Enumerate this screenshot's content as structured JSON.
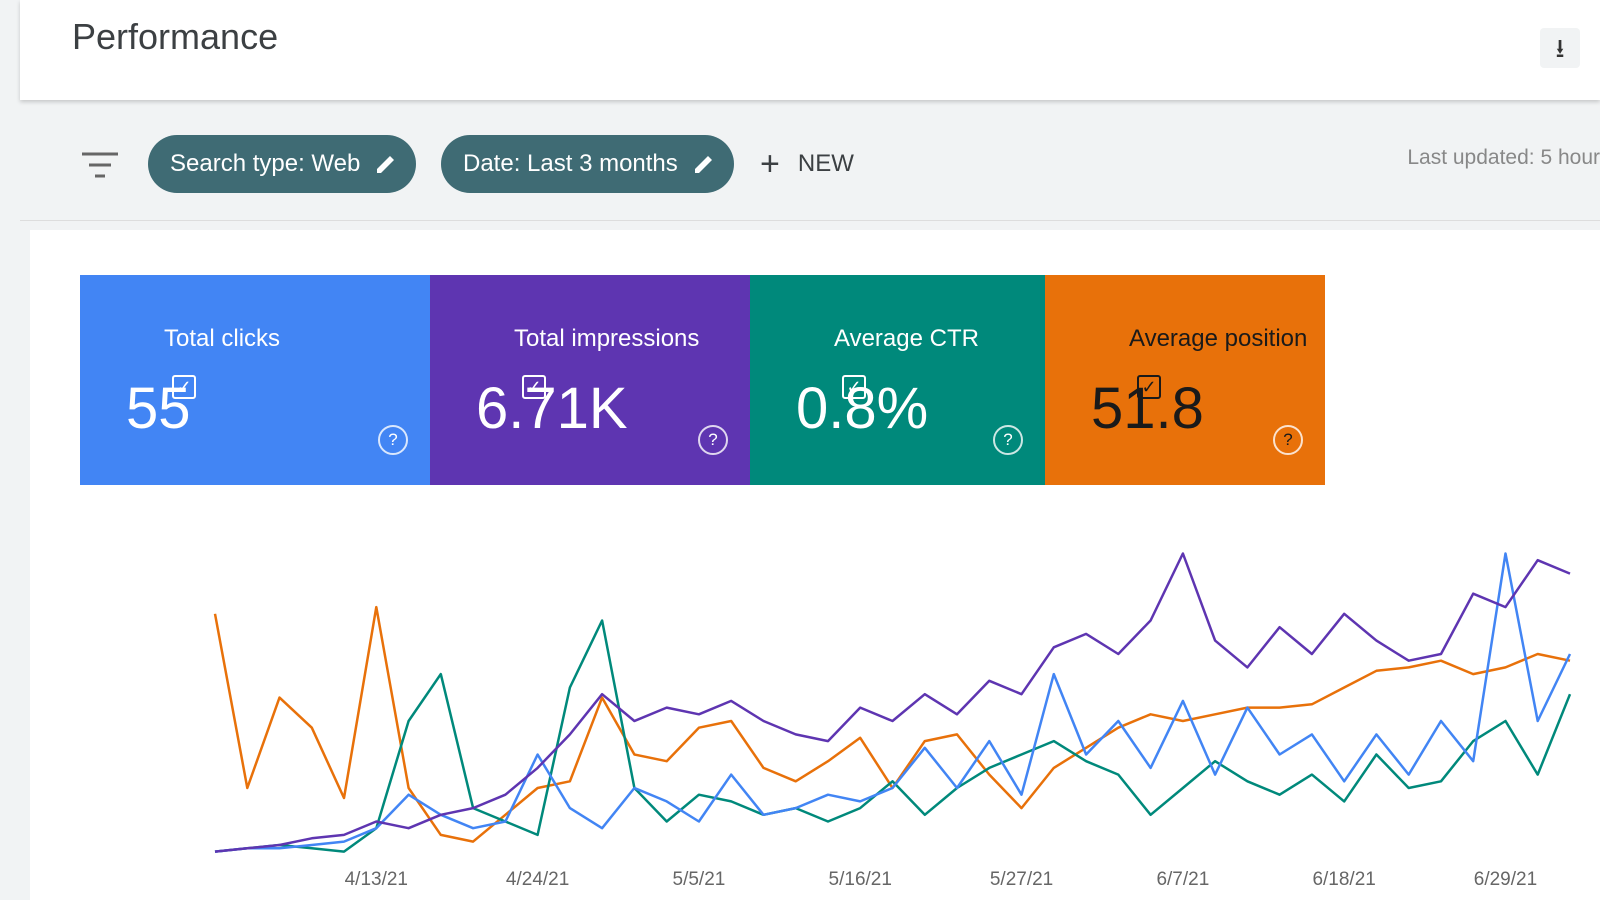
{
  "header": {
    "title": "Performance",
    "last_updated": "Last updated: 5 hour"
  },
  "filters": [
    "Search type: Web",
    "Date: Last 3 months"
  ],
  "new_button": "NEW",
  "chart_data": {
    "type": "line",
    "categories": [
      null,
      null,
      null,
      null,
      null,
      "4/13/21",
      null,
      null,
      null,
      null,
      "4/24/21",
      null,
      null,
      null,
      null,
      "5/5/21",
      null,
      null,
      null,
      null,
      "5/16/21",
      null,
      null,
      null,
      null,
      "5/27/21",
      null,
      null,
      null,
      null,
      "6/7/21",
      null,
      null,
      null,
      null,
      "6/18/21",
      null,
      null,
      null,
      null,
      "6/29/21",
      null,
      null
    ],
    "ylim": [
      0,
      100
    ],
    "series": [
      {
        "name": "Total clicks",
        "summary": "55",
        "color": "#4285f4",
        "values": [
          1,
          2,
          2,
          3,
          4,
          8,
          18,
          12,
          8,
          10,
          30,
          14,
          8,
          20,
          16,
          10,
          24,
          12,
          14,
          18,
          16,
          20,
          32,
          20,
          34,
          18,
          54,
          30,
          40,
          26,
          46,
          24,
          44,
          30,
          36,
          22,
          36,
          24,
          40,
          28,
          90,
          40,
          60
        ]
      },
      {
        "name": "Total impressions",
        "summary": "6.71K",
        "color": "#5e35b1",
        "values": [
          1,
          2,
          3,
          5,
          6,
          10,
          8,
          12,
          14,
          18,
          26,
          36,
          48,
          40,
          44,
          42,
          46,
          40,
          36,
          34,
          44,
          40,
          48,
          42,
          52,
          48,
          62,
          66,
          60,
          70,
          90,
          64,
          56,
          68,
          60,
          72,
          64,
          58,
          60,
          78,
          74,
          88,
          84
        ]
      },
      {
        "name": "Average CTR",
        "summary": "0.8%",
        "color": "#00897b",
        "values": [
          1,
          2,
          3,
          2,
          1,
          8,
          40,
          54,
          14,
          10,
          6,
          50,
          70,
          20,
          10,
          18,
          16,
          12,
          14,
          10,
          14,
          22,
          12,
          20,
          26,
          30,
          34,
          28,
          24,
          12,
          20,
          28,
          22,
          18,
          24,
          16,
          30,
          20,
          22,
          34,
          40,
          24,
          48
        ]
      },
      {
        "name": "Average position",
        "summary": "51.8",
        "color": "#e8710a",
        "values": [
          72,
          20,
          47,
          38,
          17,
          74,
          20,
          6,
          4,
          12,
          20,
          22,
          47,
          30,
          28,
          38,
          40,
          26,
          22,
          28,
          35,
          20,
          34,
          36,
          24,
          14,
          26,
          32,
          38,
          42,
          40,
          42,
          44,
          44,
          45,
          50,
          55,
          56,
          58,
          54,
          56,
          60,
          58
        ]
      }
    ]
  }
}
